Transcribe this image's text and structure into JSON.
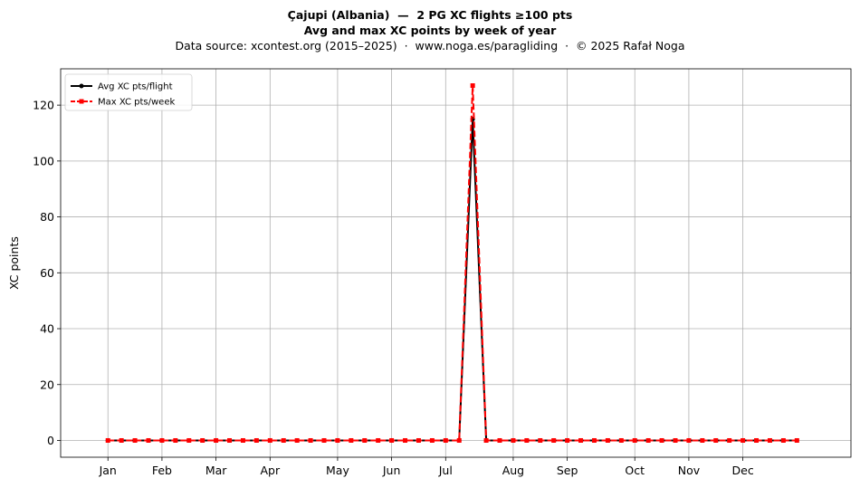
{
  "title": "Çajupi (Albania)  —  2 PG XC flights ≥100 pts",
  "subtitle": "Avg and max XC points by week of year",
  "source_line": "Data source: xcontest.org (2015–2025)  ·  www.noga.es/paragliding  ·  © 2025 Rafał Noga",
  "chart_data": {
    "type": "line",
    "title": "Çajupi (Albania)  —  2 PG XC flights ≥100 pts",
    "subtitle": "Avg and max XC points by week of year",
    "xlabel": "",
    "ylabel": "XC points",
    "ylim": [
      -6,
      133
    ],
    "xlim": [
      -2.5,
      56
    ],
    "yticks": [
      0,
      20,
      40,
      60,
      80,
      100,
      120
    ],
    "month_ticks": [
      {
        "label": "Jan",
        "week": 1
      },
      {
        "label": "Feb",
        "week": 5
      },
      {
        "label": "Mar",
        "week": 9
      },
      {
        "label": "Apr",
        "week": 13
      },
      {
        "label": "May",
        "week": 18
      },
      {
        "label": "Jun",
        "week": 22
      },
      {
        "label": "Jul",
        "week": 26
      },
      {
        "label": "Aug",
        "week": 31
      },
      {
        "label": "Sep",
        "week": 35
      },
      {
        "label": "Oct",
        "week": 40
      },
      {
        "label": "Nov",
        "week": 44
      },
      {
        "label": "Dec",
        "week": 48
      }
    ],
    "grid": true,
    "legend_position": "top-left",
    "x": [
      1,
      2,
      3,
      4,
      5,
      6,
      7,
      8,
      9,
      10,
      11,
      12,
      13,
      14,
      15,
      16,
      17,
      18,
      19,
      20,
      21,
      22,
      23,
      24,
      25,
      26,
      27,
      28,
      29,
      30,
      31,
      32,
      33,
      34,
      35,
      36,
      37,
      38,
      39,
      40,
      41,
      42,
      43,
      44,
      45,
      46,
      47,
      48,
      49,
      50,
      51,
      52
    ],
    "series": [
      {
        "name": "Avg XC pts/flight",
        "color": "#000000",
        "style": "solid-circle",
        "values": [
          0,
          0,
          0,
          0,
          0,
          0,
          0,
          0,
          0,
          0,
          0,
          0,
          0,
          0,
          0,
          0,
          0,
          0,
          0,
          0,
          0,
          0,
          0,
          0,
          0,
          0,
          0,
          115,
          0,
          0,
          0,
          0,
          0,
          0,
          0,
          0,
          0,
          0,
          0,
          0,
          0,
          0,
          0,
          0,
          0,
          0,
          0,
          0,
          0,
          0,
          0,
          0
        ]
      },
      {
        "name": "Max XC pts/week",
        "color": "#ff0000",
        "style": "dashed-square",
        "values": [
          0,
          0,
          0,
          0,
          0,
          0,
          0,
          0,
          0,
          0,
          0,
          0,
          0,
          0,
          0,
          0,
          0,
          0,
          0,
          0,
          0,
          0,
          0,
          0,
          0,
          0,
          0,
          127,
          0,
          0,
          0,
          0,
          0,
          0,
          0,
          0,
          0,
          0,
          0,
          0,
          0,
          0,
          0,
          0,
          0,
          0,
          0,
          0,
          0,
          0,
          0,
          0
        ]
      }
    ]
  }
}
